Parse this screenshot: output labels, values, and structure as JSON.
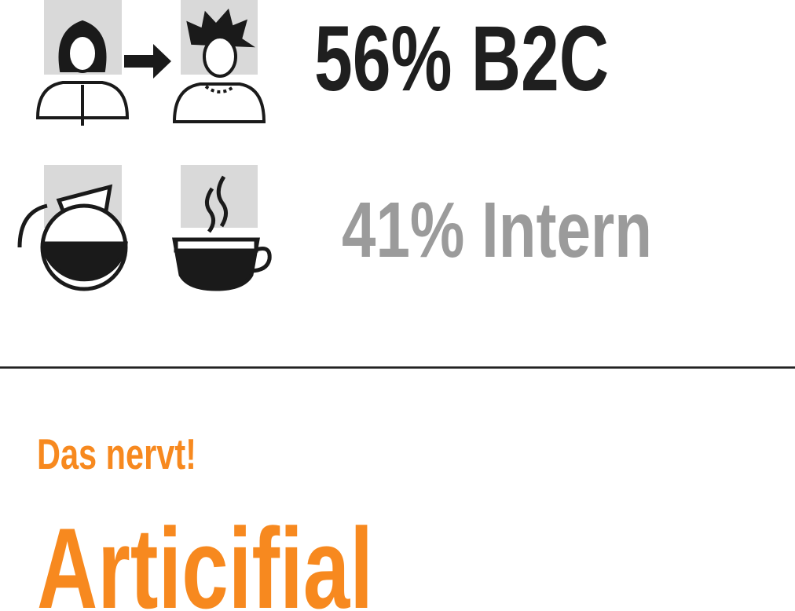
{
  "stats": [
    {
      "label": "56% B2C"
    },
    {
      "label": "41% Intern"
    }
  ],
  "section": {
    "kicker": "Das nervt!",
    "heading": "Articifial"
  }
}
